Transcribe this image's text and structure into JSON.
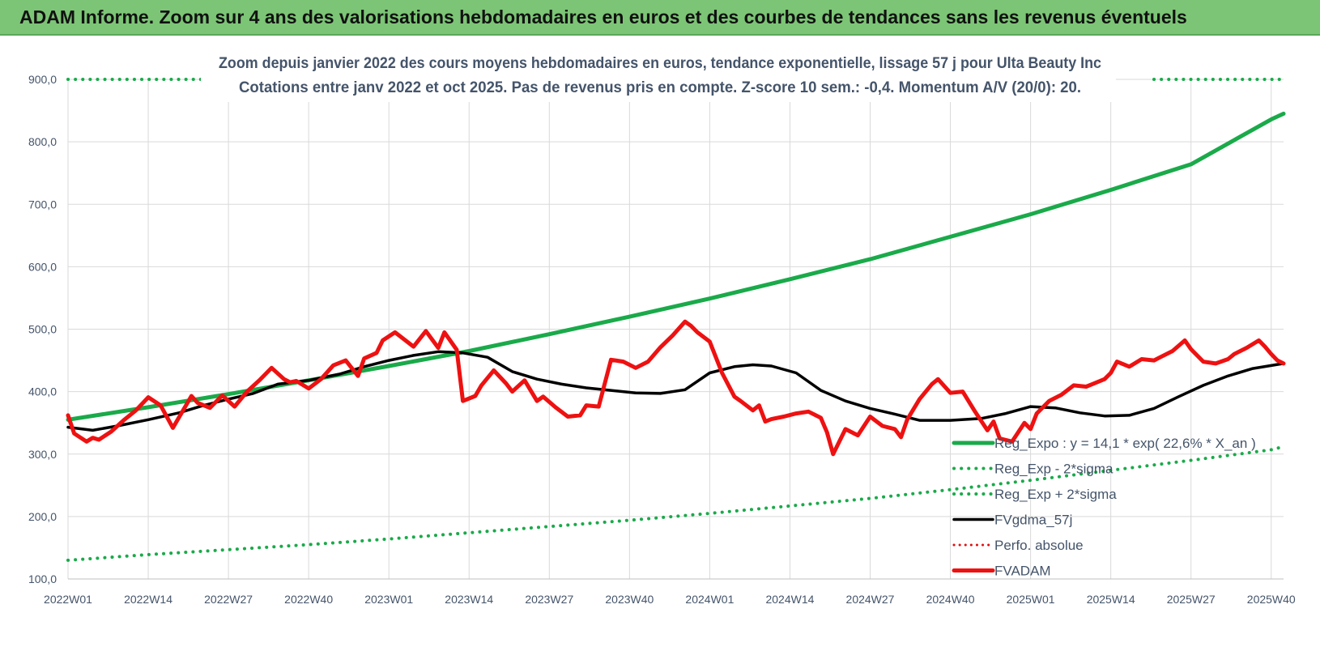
{
  "banner": {
    "title": "ADAM Informe. Zoom sur 4 ans des valorisations hebdomadaires en euros et des courbes de tendances sans les revenus éventuels"
  },
  "chart_data": {
    "type": "line",
    "title_line1": "Zoom depuis janvier 2022 des cours moyens hebdomadaires en euros, tendance exponentielle, lissage 57 j pour Ulta Beauty Inc",
    "title_line2": "Cotations entre janv 2022 et oct 2025. Pas de revenus pris en compte. Z-score 10 sem.: -0,4. Momentum A/V (20/0): 20.",
    "ylim": [
      100,
      900
    ],
    "y_ticks": [
      "100,0",
      "200,0",
      "300,0",
      "400,0",
      "500,0",
      "600,0",
      "700,0",
      "800,0",
      "900,0"
    ],
    "x_range": [
      0,
      197
    ],
    "x_ticks": [
      {
        "label": "2022W01",
        "week": 0
      },
      {
        "label": "2022W14",
        "week": 13
      },
      {
        "label": "2022W27",
        "week": 26
      },
      {
        "label": "2022W40",
        "week": 39
      },
      {
        "label": "2023W01",
        "week": 52
      },
      {
        "label": "2023W14",
        "week": 65
      },
      {
        "label": "2023W27",
        "week": 78
      },
      {
        "label": "2023W40",
        "week": 91
      },
      {
        "label": "2024W01",
        "week": 104
      },
      {
        "label": "2024W14",
        "week": 117
      },
      {
        "label": "2024W27",
        "week": 130
      },
      {
        "label": "2024W40",
        "week": 143
      },
      {
        "label": "2025W01",
        "week": 156
      },
      {
        "label": "2025W14",
        "week": 169
      },
      {
        "label": "2025W27",
        "week": 182
      },
      {
        "label": "2025W40",
        "week": 195
      }
    ],
    "grid": "horizontal and vertical",
    "legend_position": "bottom-right",
    "colors": {
      "reg_expo": "#1aaa4a",
      "sigma": "#1aaa4a",
      "gdma": "#000000",
      "perfo": "#e01010",
      "fvadam": "#ee1111",
      "grid": "#d9d9d9",
      "banner": "#7cc576"
    },
    "series": [
      {
        "name": "Reg_Expo : y = 14,1 * exp( 22,6% *  X_an )",
        "style": "solid",
        "color": "#1aaa4a",
        "x": [
          0,
          13,
          26,
          39,
          52,
          65,
          78,
          91,
          104,
          117,
          130,
          143,
          156,
          169,
          182,
          195,
          200
        ],
        "values": [
          355,
          375,
          396,
          418,
          441,
          465,
          492,
          520,
          549,
          580,
          612,
          648,
          684,
          723,
          764,
          836,
          845
        ]
      },
      {
        "name": "Reg_Exp - 2*sigma",
        "style": "dotted",
        "color": "#1aaa4a",
        "x": [
          0,
          13,
          26,
          39,
          52,
          65,
          78,
          91,
          104,
          117,
          130,
          143,
          156,
          169,
          182,
          195,
          200
        ],
        "values": [
          130,
          139,
          147,
          155,
          164,
          174,
          184,
          194,
          205,
          217,
          229,
          243,
          258,
          274,
          290,
          307,
          312
        ]
      },
      {
        "name": "Reg_Exp + 2*sigma",
        "style": "dotted",
        "color": "#1aaa4a",
        "x": [
          0,
          22,
          176,
          200
        ],
        "values": [
          900,
          900,
          900,
          900
        ]
      },
      {
        "name": "FVgdma_57j",
        "style": "solid",
        "color": "#000000",
        "x": [
          0,
          4,
          8,
          13,
          18,
          22,
          26,
          30,
          34,
          39,
          44,
          48,
          52,
          56,
          60,
          64,
          68,
          72,
          76,
          80,
          84,
          88,
          92,
          96,
          100,
          104,
          108,
          111,
          114,
          118,
          122,
          126,
          130,
          134,
          138,
          143,
          148,
          152,
          156,
          160,
          164,
          168,
          172,
          176,
          180,
          184,
          188,
          192,
          197
        ],
        "values": [
          343,
          338,
          345,
          355,
          366,
          378,
          388,
          397,
          412,
          418,
          428,
          440,
          450,
          458,
          464,
          462,
          455,
          432,
          420,
          412,
          406,
          402,
          398,
          397,
          403,
          430,
          440,
          443,
          441,
          430,
          402,
          385,
          373,
          364,
          354,
          354,
          357,
          365,
          376,
          374,
          366,
          361,
          362,
          373,
          392,
          410,
          425,
          437,
          445
        ]
      },
      {
        "name": "Perfo. absolue",
        "style": "dotted",
        "color": "#e01010",
        "x": [],
        "values": []
      },
      {
        "name": "FVADAM",
        "style": "solid",
        "color": "#ee1111",
        "x": [
          0,
          1,
          3,
          4,
          5,
          7,
          9,
          11,
          13,
          15,
          17,
          20,
          21,
          23,
          25,
          27,
          29,
          31,
          33,
          35,
          36,
          37,
          39,
          41,
          43,
          45,
          47,
          48,
          50,
          51,
          53,
          56,
          58,
          60,
          61,
          63,
          64,
          66,
          67,
          69,
          71,
          72,
          74,
          76,
          77,
          79,
          81,
          83,
          84,
          86,
          88,
          90,
          92,
          94,
          96,
          98,
          100,
          101,
          102,
          104,
          106,
          108,
          109,
          111,
          112,
          113,
          114,
          116,
          118,
          120,
          122,
          123,
          124,
          126,
          128,
          130,
          132,
          134,
          135,
          136,
          138,
          140,
          141,
          143,
          145,
          147,
          149,
          150,
          151,
          153,
          155,
          156,
          157,
          159,
          161,
          163,
          165,
          166,
          168,
          169,
          170,
          172,
          174,
          176,
          177,
          179,
          181,
          182,
          184,
          186,
          188,
          189,
          191,
          193,
          194,
          195,
          196,
          197
        ],
        "values": [
          362,
          333,
          320,
          326,
          323,
          336,
          354,
          370,
          391,
          378,
          342,
          393,
          382,
          374,
          394,
          376,
          400,
          418,
          438,
          420,
          415,
          417,
          405,
          420,
          442,
          450,
          425,
          453,
          462,
          482,
          495,
          472,
          497,
          470,
          495,
          467,
          385,
          393,
          410,
          434,
          413,
          400,
          418,
          385,
          392,
          375,
          360,
          362,
          378,
          376,
          451,
          448,
          438,
          448,
          471,
          490,
          512,
          505,
          495,
          480,
          430,
          392,
          385,
          370,
          378,
          352,
          356,
          360,
          365,
          368,
          358,
          335,
          300,
          340,
          330,
          360,
          345,
          340,
          327,
          355,
          388,
          412,
          420,
          398,
          400,
          368,
          338,
          352,
          325,
          320,
          350,
          340,
          365,
          385,
          395,
          410,
          408,
          412,
          420,
          430,
          448,
          440,
          452,
          450,
          455,
          465,
          482,
          468,
          448,
          445,
          452,
          460,
          470,
          482,
          472,
          460,
          450,
          445
        ]
      }
    ]
  }
}
